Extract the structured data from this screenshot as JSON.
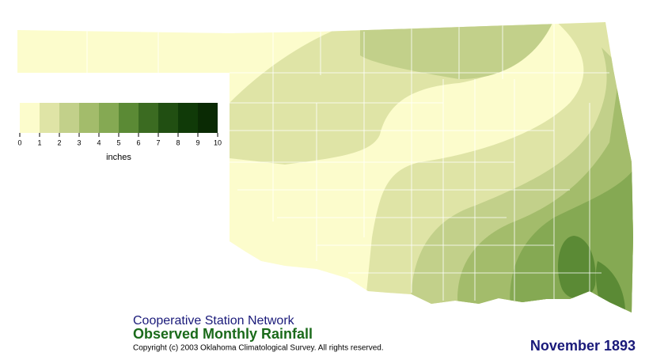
{
  "header": {
    "network": "Cooperative Station Network",
    "title": "Observed Monthly Rainfall",
    "copyright": "Copyright (c) 2003 Oklahoma Climatological Survey. All rights reserved.",
    "date": "November 1893"
  },
  "legend": {
    "unit": "inches",
    "ticks": [
      0,
      1,
      2,
      3,
      4,
      5,
      6,
      7,
      8,
      9,
      10
    ],
    "colors": [
      "#fcfccc",
      "#dfe4a6",
      "#c2d08a",
      "#a3bc6b",
      "#85a953",
      "#5b8a35",
      "#3b6b21",
      "#214f12",
      "#103a08",
      "#0a2a04"
    ]
  }
}
